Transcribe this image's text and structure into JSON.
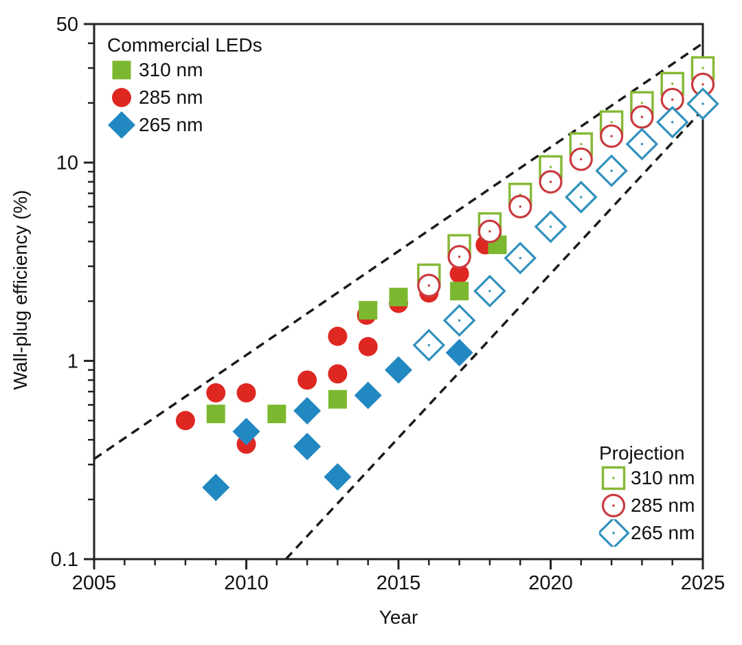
{
  "figure": {
    "x_axis_label": "Year",
    "y_axis_label": "Wall-plug efficiency (%)"
  },
  "legend_commercial": {
    "title": "Commercial LEDs",
    "items": [
      {
        "label": "310 nm",
        "shape": "square",
        "variant": "filled",
        "color": "#7cb82f"
      },
      {
        "label": "285 nm",
        "shape": "circle",
        "variant": "filled",
        "color": "#df2722"
      },
      {
        "label": "265 nm",
        "shape": "diamond",
        "variant": "filled",
        "color": "#2188c1"
      }
    ]
  },
  "legend_projection": {
    "title": "Projection",
    "items": [
      {
        "label": "310 nm",
        "shape": "square",
        "variant": "open",
        "color": "#86ba38"
      },
      {
        "label": "285 nm",
        "shape": "circle",
        "variant": "open",
        "color": "#c93a3e"
      },
      {
        "label": "265 nm",
        "shape": "diamond",
        "variant": "open",
        "color": "#3090bd"
      }
    ]
  },
  "chart_data": {
    "type": "scatter",
    "title": "",
    "xlabel": "Year",
    "ylabel": "Wall-plug efficiency (%)",
    "x_axis": {
      "min": 2005,
      "max": 2025,
      "major_ticks": [
        2005,
        2010,
        2015,
        2020,
        2025
      ],
      "minor_tick_step": 1
    },
    "y_axis": {
      "scale": "log",
      "min": 0.1,
      "max": 50,
      "major_ticks": [
        0.1,
        1,
        10,
        50
      ],
      "minor_ticks": [
        0.2,
        0.3,
        0.4,
        0.5,
        0.6,
        0.7,
        0.8,
        0.9,
        2,
        3,
        4,
        5,
        6,
        7,
        8,
        9,
        20,
        30,
        40
      ]
    },
    "grid": false,
    "series": [
      {
        "name": "Commercial LEDs 285 nm",
        "marker": "circle",
        "variant": "filled",
        "color": "#df2722",
        "points": [
          [
            2008,
            0.5
          ],
          [
            2009,
            0.69
          ],
          [
            2010,
            0.69
          ],
          [
            2010,
            0.38
          ],
          [
            2012,
            0.8
          ],
          [
            2013,
            1.33
          ],
          [
            2013,
            0.86
          ],
          [
            2013.95,
            1.7
          ],
          [
            2014,
            1.18
          ],
          [
            2015,
            1.95
          ],
          [
            2016,
            2.2
          ],
          [
            2017,
            2.75
          ],
          [
            2017.85,
            3.85
          ]
        ]
      },
      {
        "name": "Commercial LEDs 265 nm",
        "marker": "diamond",
        "variant": "filled",
        "color": "#2188c1",
        "points": [
          [
            2009,
            0.23
          ],
          [
            2010,
            0.44
          ],
          [
            2012,
            0.56
          ],
          [
            2012,
            0.37
          ],
          [
            2013,
            0.26
          ],
          [
            2014,
            0.67
          ],
          [
            2015,
            0.9
          ],
          [
            2017,
            1.1
          ]
        ]
      },
      {
        "name": "Commercial LEDs 310 nm",
        "marker": "square",
        "variant": "filled",
        "color": "#7cb82f",
        "points": [
          [
            2009,
            0.54
          ],
          [
            2011,
            0.54
          ],
          [
            2013,
            0.64
          ],
          [
            2014,
            1.8
          ],
          [
            2015,
            2.1
          ],
          [
            2017,
            2.25
          ],
          [
            2018.25,
            3.85
          ]
        ]
      },
      {
        "name": "Projection 310 nm",
        "marker": "square",
        "variant": "open",
        "color": "#86ba38",
        "points": [
          [
            2016,
            2.7
          ],
          [
            2017,
            3.8
          ],
          [
            2018,
            4.9
          ],
          [
            2019,
            6.9
          ],
          [
            2020,
            9.5
          ],
          [
            2021,
            12.4
          ],
          [
            2022,
            16
          ],
          [
            2023,
            20
          ],
          [
            2024,
            25
          ],
          [
            2025,
            30
          ]
        ]
      },
      {
        "name": "Projection 285 nm",
        "marker": "circle",
        "variant": "open",
        "color": "#c93a3e",
        "points": [
          [
            2016,
            2.4
          ],
          [
            2017,
            3.35
          ],
          [
            2018,
            4.5
          ],
          [
            2019,
            6.0
          ],
          [
            2020,
            8.0
          ],
          [
            2021,
            10.4
          ],
          [
            2022,
            13.6
          ],
          [
            2023,
            17
          ],
          [
            2024,
            20.8
          ],
          [
            2025,
            24.8
          ]
        ]
      },
      {
        "name": "Projection 265 nm",
        "marker": "diamond",
        "variant": "open",
        "color": "#3090bd",
        "points": [
          [
            2016,
            1.2
          ],
          [
            2017,
            1.6
          ],
          [
            2018,
            2.25
          ],
          [
            2019,
            3.3
          ],
          [
            2020,
            4.75
          ],
          [
            2021,
            6.7
          ],
          [
            2022,
            9.1
          ],
          [
            2023,
            12.4
          ],
          [
            2024,
            16
          ],
          [
            2025,
            19.8
          ]
        ]
      }
    ],
    "trend_lines": [
      {
        "name": "upper dashed trend",
        "style": "dashed",
        "points": [
          [
            2005,
            0.32
          ],
          [
            2025,
            40
          ]
        ]
      },
      {
        "name": "lower dashed trend",
        "style": "dashed",
        "points": [
          [
            2011.3,
            0.1
          ],
          [
            2025,
            18.5
          ]
        ]
      }
    ],
    "legend_positions": {
      "commercial": "top-left",
      "projection": "bottom-right"
    }
  }
}
